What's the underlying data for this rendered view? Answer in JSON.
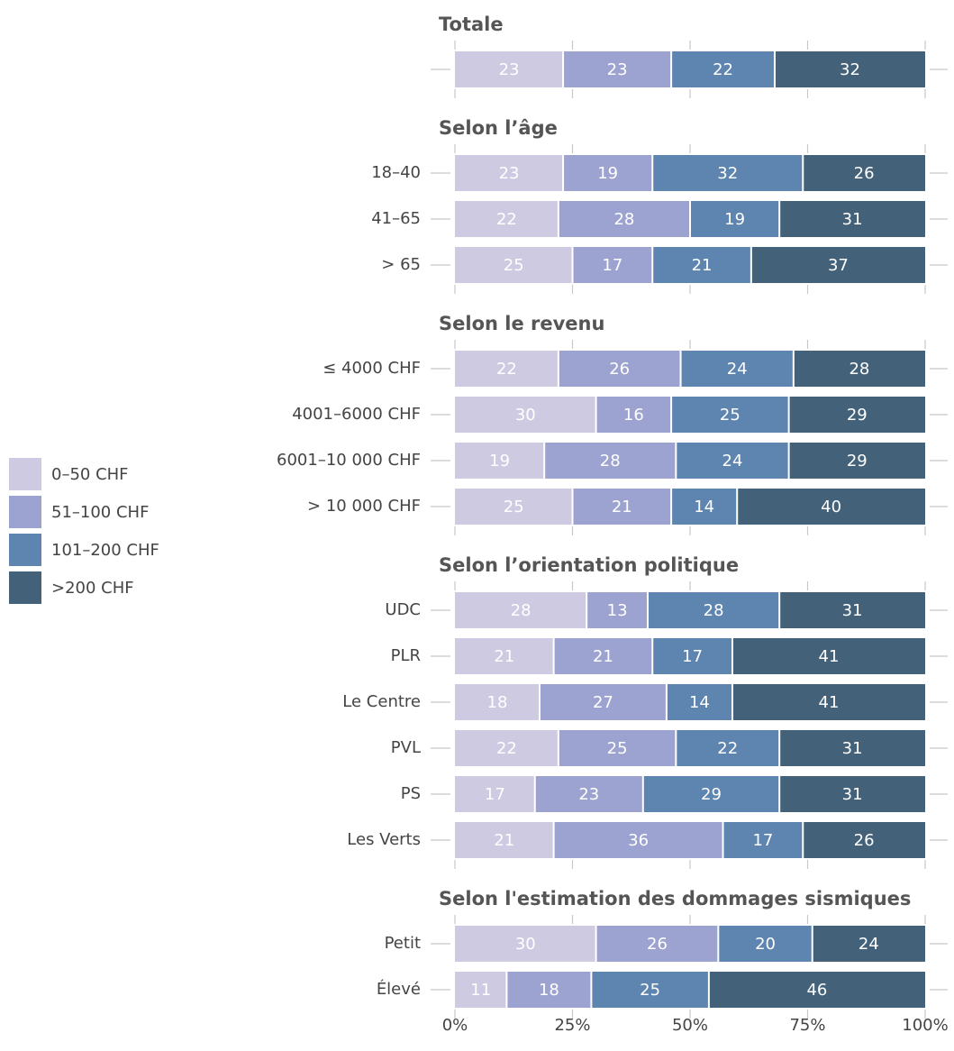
{
  "chart_data": {
    "type": "stacked_bar_h",
    "series": [
      {
        "name": "0–50 CHF",
        "color": "#cdcae2"
      },
      {
        "name": "51–100 CHF",
        "color": "#9da3d0"
      },
      {
        "name": "101–200 CHF",
        "color": "#5e84b0"
      },
      {
        "name": ">200 CHF",
        "color": "#43627a"
      }
    ],
    "groups": [
      {
        "title": "Totale",
        "categories": [
          null
        ],
        "values": [
          [
            23,
            23,
            22,
            32
          ]
        ]
      },
      {
        "title": "Selon l’âge",
        "categories": [
          "18–40",
          "41–65",
          "> 65"
        ],
        "values": [
          [
            23,
            19,
            32,
            26
          ],
          [
            22,
            28,
            19,
            31
          ],
          [
            25,
            17,
            21,
            37
          ]
        ]
      },
      {
        "title": "Selon le revenu",
        "categories": [
          "≤ 4000 CHF",
          "4001–6000 CHF",
          "6001–10 000 CHF",
          "> 10 000 CHF"
        ],
        "values": [
          [
            22,
            26,
            24,
            28
          ],
          [
            30,
            16,
            25,
            29
          ],
          [
            19,
            28,
            24,
            29
          ],
          [
            25,
            21,
            14,
            40
          ]
        ]
      },
      {
        "title": "Selon l’orientation politique",
        "categories": [
          "UDC",
          "PLR",
          "Le Centre",
          "PVL",
          "PS",
          "Les Verts"
        ],
        "values": [
          [
            28,
            13,
            28,
            31
          ],
          [
            21,
            21,
            17,
            41
          ],
          [
            18,
            27,
            14,
            41
          ],
          [
            22,
            25,
            22,
            31
          ],
          [
            17,
            23,
            29,
            31
          ],
          [
            21,
            36,
            17,
            26
          ]
        ]
      },
      {
        "title": "Selon l'estimation des dommages sismiques",
        "categories": [
          "Petit",
          "Élevé"
        ],
        "values": [
          [
            30,
            26,
            20,
            24
          ],
          [
            11,
            18,
            25,
            46
          ]
        ]
      }
    ],
    "xlim": [
      0,
      100
    ],
    "xticks": [
      {
        "value": 0,
        "label": "0%"
      },
      {
        "value": 25,
        "label": "25%"
      },
      {
        "value": 50,
        "label": "50%"
      },
      {
        "value": 75,
        "label": "75%"
      },
      {
        "value": 100,
        "label": "100%"
      }
    ]
  }
}
